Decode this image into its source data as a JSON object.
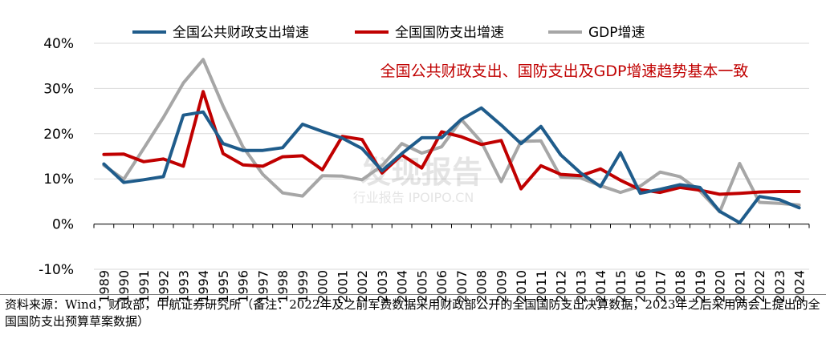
{
  "chart_data": {
    "type": "line",
    "annotation": "全国公共财政支出、国防支出及GDP增速趋势基本一致",
    "watermark": "行业报告 IPOIPO.CN",
    "watermark_logo": "发现报告",
    "y_tick_labels": [
      "-10%",
      "0%",
      "10%",
      "20%",
      "30%",
      "40%"
    ],
    "y_ticks": [
      -10,
      0,
      10,
      20,
      30,
      40
    ],
    "ylim": [
      -10,
      40
    ],
    "grid": true,
    "legend_position": "top",
    "x": [
      "1989",
      "1990",
      "1991",
      "1992",
      "1993",
      "1994",
      "1995",
      "1996",
      "1997",
      "1998",
      "1999",
      "2000",
      "2001",
      "2002",
      "2003",
      "2004",
      "2005",
      "2006",
      "2007",
      "2008",
      "2009",
      "2010",
      "2011",
      "2012",
      "2013",
      "2014",
      "2015",
      "2016",
      "2017",
      "2018",
      "2019",
      "2020",
      "2021",
      "2022",
      "2023",
      "2024"
    ],
    "series": [
      {
        "name": "全国公共财政支出增速",
        "color": "#1f5c8b",
        "values": [
          13.3,
          9.2,
          9.8,
          10.5,
          24.1,
          24.8,
          17.8,
          16.3,
          16.3,
          16.9,
          22.1,
          20.5,
          19.0,
          16.7,
          11.8,
          15.6,
          19.1,
          19.1,
          23.2,
          25.7,
          21.9,
          17.8,
          21.6,
          15.3,
          11.3,
          8.3,
          15.8,
          6.8,
          7.7,
          8.7,
          8.1,
          2.8,
          0.3,
          6.1,
          5.4,
          3.6
        ]
      },
      {
        "name": "全国国防支出增速",
        "color": "#c00000",
        "values": [
          15.4,
          15.5,
          13.8,
          14.4,
          12.8,
          29.3,
          15.6,
          13.1,
          12.8,
          14.9,
          15.1,
          12.0,
          19.4,
          18.7,
          11.3,
          15.3,
          12.4,
          20.4,
          19.3,
          17.6,
          18.5,
          7.8,
          12.9,
          11.0,
          10.7,
          12.2,
          9.7,
          7.6,
          7.0,
          8.1,
          7.5,
          6.6,
          6.8,
          7.1,
          7.2,
          7.2
        ]
      },
      {
        "name": "GDP增速",
        "color": "#a6a6a6",
        "values": [
          13.0,
          9.9,
          16.7,
          23.6,
          31.2,
          36.4,
          26.1,
          17.1,
          11.0,
          6.9,
          6.2,
          10.7,
          10.6,
          9.8,
          12.9,
          17.8,
          15.7,
          17.1,
          23.1,
          18.2,
          9.4,
          18.3,
          18.4,
          10.4,
          10.2,
          8.5,
          7.0,
          8.4,
          11.5,
          10.5,
          7.3,
          2.7,
          13.4,
          4.8,
          4.6,
          4.2
        ]
      }
    ]
  },
  "note": {
    "text": "资料来源：Wind，财政部，中航证券研究所（备注：2022年及之前军费数据采用财政部公开的全国国防支出决算数据，2023年之后采用两会上提出的全国国防支出预算草案数据）"
  }
}
